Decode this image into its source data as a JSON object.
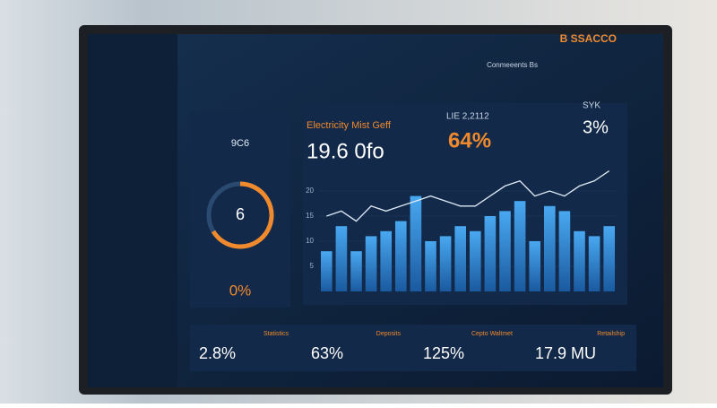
{
  "brand": "B SSACCO",
  "top_right": "Conmeeents Bs",
  "gauge_card": {
    "title": "9C6",
    "value": "6",
    "percent": "0%"
  },
  "main_card": {
    "title": "Electricity Mist Geff",
    "value": "19.6 0fo",
    "kpi_label": "LIE 2,2112",
    "kpi_value": "64%"
  },
  "side_card": {
    "title": "SYK",
    "value": "3%"
  },
  "chart": {
    "type": "bar",
    "ylim": [
      0,
      25
    ],
    "yticks": [
      5,
      10,
      15,
      20
    ],
    "values": [
      8,
      13,
      8,
      11,
      12,
      14,
      19,
      10,
      11,
      13,
      12,
      15,
      16,
      18,
      10,
      17,
      16,
      12,
      11,
      13
    ],
    "line": [
      15,
      16,
      14,
      17,
      16,
      17,
      18,
      19,
      18,
      17,
      17,
      19,
      21,
      22,
      19,
      20,
      19,
      21,
      22,
      24
    ]
  },
  "footer": [
    {
      "label": "Statistics",
      "value": "2.8%"
    },
    {
      "label": "Deposits",
      "value": "63%"
    },
    {
      "label": "Cepto Waltmet",
      "value": "125%"
    },
    {
      "label": "Retailship",
      "value": "17.9 MU"
    }
  ]
}
